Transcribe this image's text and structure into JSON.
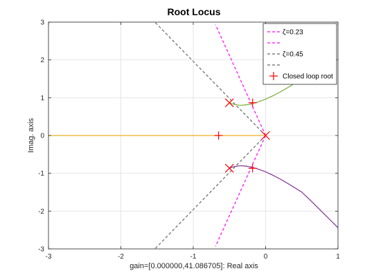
{
  "chart_data": {
    "type": "line",
    "title": "Root Locus",
    "xlabel": "gain=[0.000000,41.086705]: Real axis",
    "ylabel": "Imag. axis",
    "xlim": [
      -3,
      1
    ],
    "ylim": [
      -3,
      3
    ],
    "xticks": [
      "-3",
      "-2",
      "-1",
      "0",
      "1"
    ],
    "yticks": [
      "-3",
      "-2",
      "-1",
      "0",
      "1",
      "2",
      "3"
    ],
    "grid": true,
    "legend_position": "top-right",
    "series": [
      {
        "name": "ζ=0.23",
        "kind": "damping-line",
        "color": "#ff00ff",
        "dash": true,
        "x": [
          0,
          -0.692
        ],
        "y": [
          0,
          2.933
        ]
      },
      {
        "name": "",
        "kind": "damping-line",
        "color": "#ff00ff",
        "dash": true,
        "x": [
          0,
          -0.692
        ],
        "y": [
          0,
          -2.933
        ]
      },
      {
        "name": "ζ=0.45",
        "kind": "damping-line",
        "color": "#666666",
        "dash": true,
        "x": [
          0,
          -1.53
        ],
        "y": [
          0,
          3
        ]
      },
      {
        "name": "",
        "kind": "damping-line",
        "color": "#666666",
        "dash": true,
        "x": [
          0,
          -1.53
        ],
        "y": [
          0,
          -3
        ]
      },
      {
        "name": "",
        "kind": "branch",
        "color": "#77ac30",
        "x": [
          -0.5,
          -0.45,
          -0.4,
          -0.35,
          -0.3,
          -0.25,
          -0.18,
          -0.1,
          0.0,
          0.1,
          0.2,
          0.3,
          0.4,
          0.5
        ],
        "y": [
          0.866,
          0.83,
          0.81,
          0.8,
          0.805,
          0.815,
          0.845,
          0.89,
          0.96,
          1.05,
          1.15,
          1.26,
          1.38,
          1.5
        ]
      },
      {
        "name": "",
        "kind": "branch",
        "color": "#7e2f8e",
        "x": [
          -0.5,
          -0.45,
          -0.4,
          -0.35,
          -0.3,
          -0.25,
          -0.18,
          -0.1,
          0.0,
          0.1,
          0.2,
          0.3,
          0.4,
          0.5,
          0.6,
          0.7,
          0.8,
          0.9,
          1.0
        ],
        "y": [
          -0.866,
          -0.83,
          -0.81,
          -0.8,
          -0.805,
          -0.815,
          -0.845,
          -0.89,
          -0.96,
          -1.05,
          -1.15,
          -1.26,
          -1.38,
          -1.5,
          -1.68,
          -1.87,
          -2.06,
          -2.25,
          -2.44
        ]
      },
      {
        "name": "",
        "kind": "branch",
        "color": "#edb120",
        "x": [
          0,
          -3
        ],
        "y": [
          0,
          0
        ]
      }
    ],
    "poles": [
      {
        "x": 0,
        "y": 0
      },
      {
        "x": -0.5,
        "y": 0.866
      },
      {
        "x": -0.5,
        "y": -0.866
      }
    ],
    "closed_loop_roots": {
      "name": "Closed loop root",
      "points": [
        {
          "x": -0.18,
          "y": 0.866
        },
        {
          "x": -0.18,
          "y": -0.866
        },
        {
          "x": -0.65,
          "y": 0
        }
      ]
    },
    "colors": {
      "axes": "#262626",
      "grid": "#e5e5e5",
      "marker": "#ff0000"
    }
  }
}
